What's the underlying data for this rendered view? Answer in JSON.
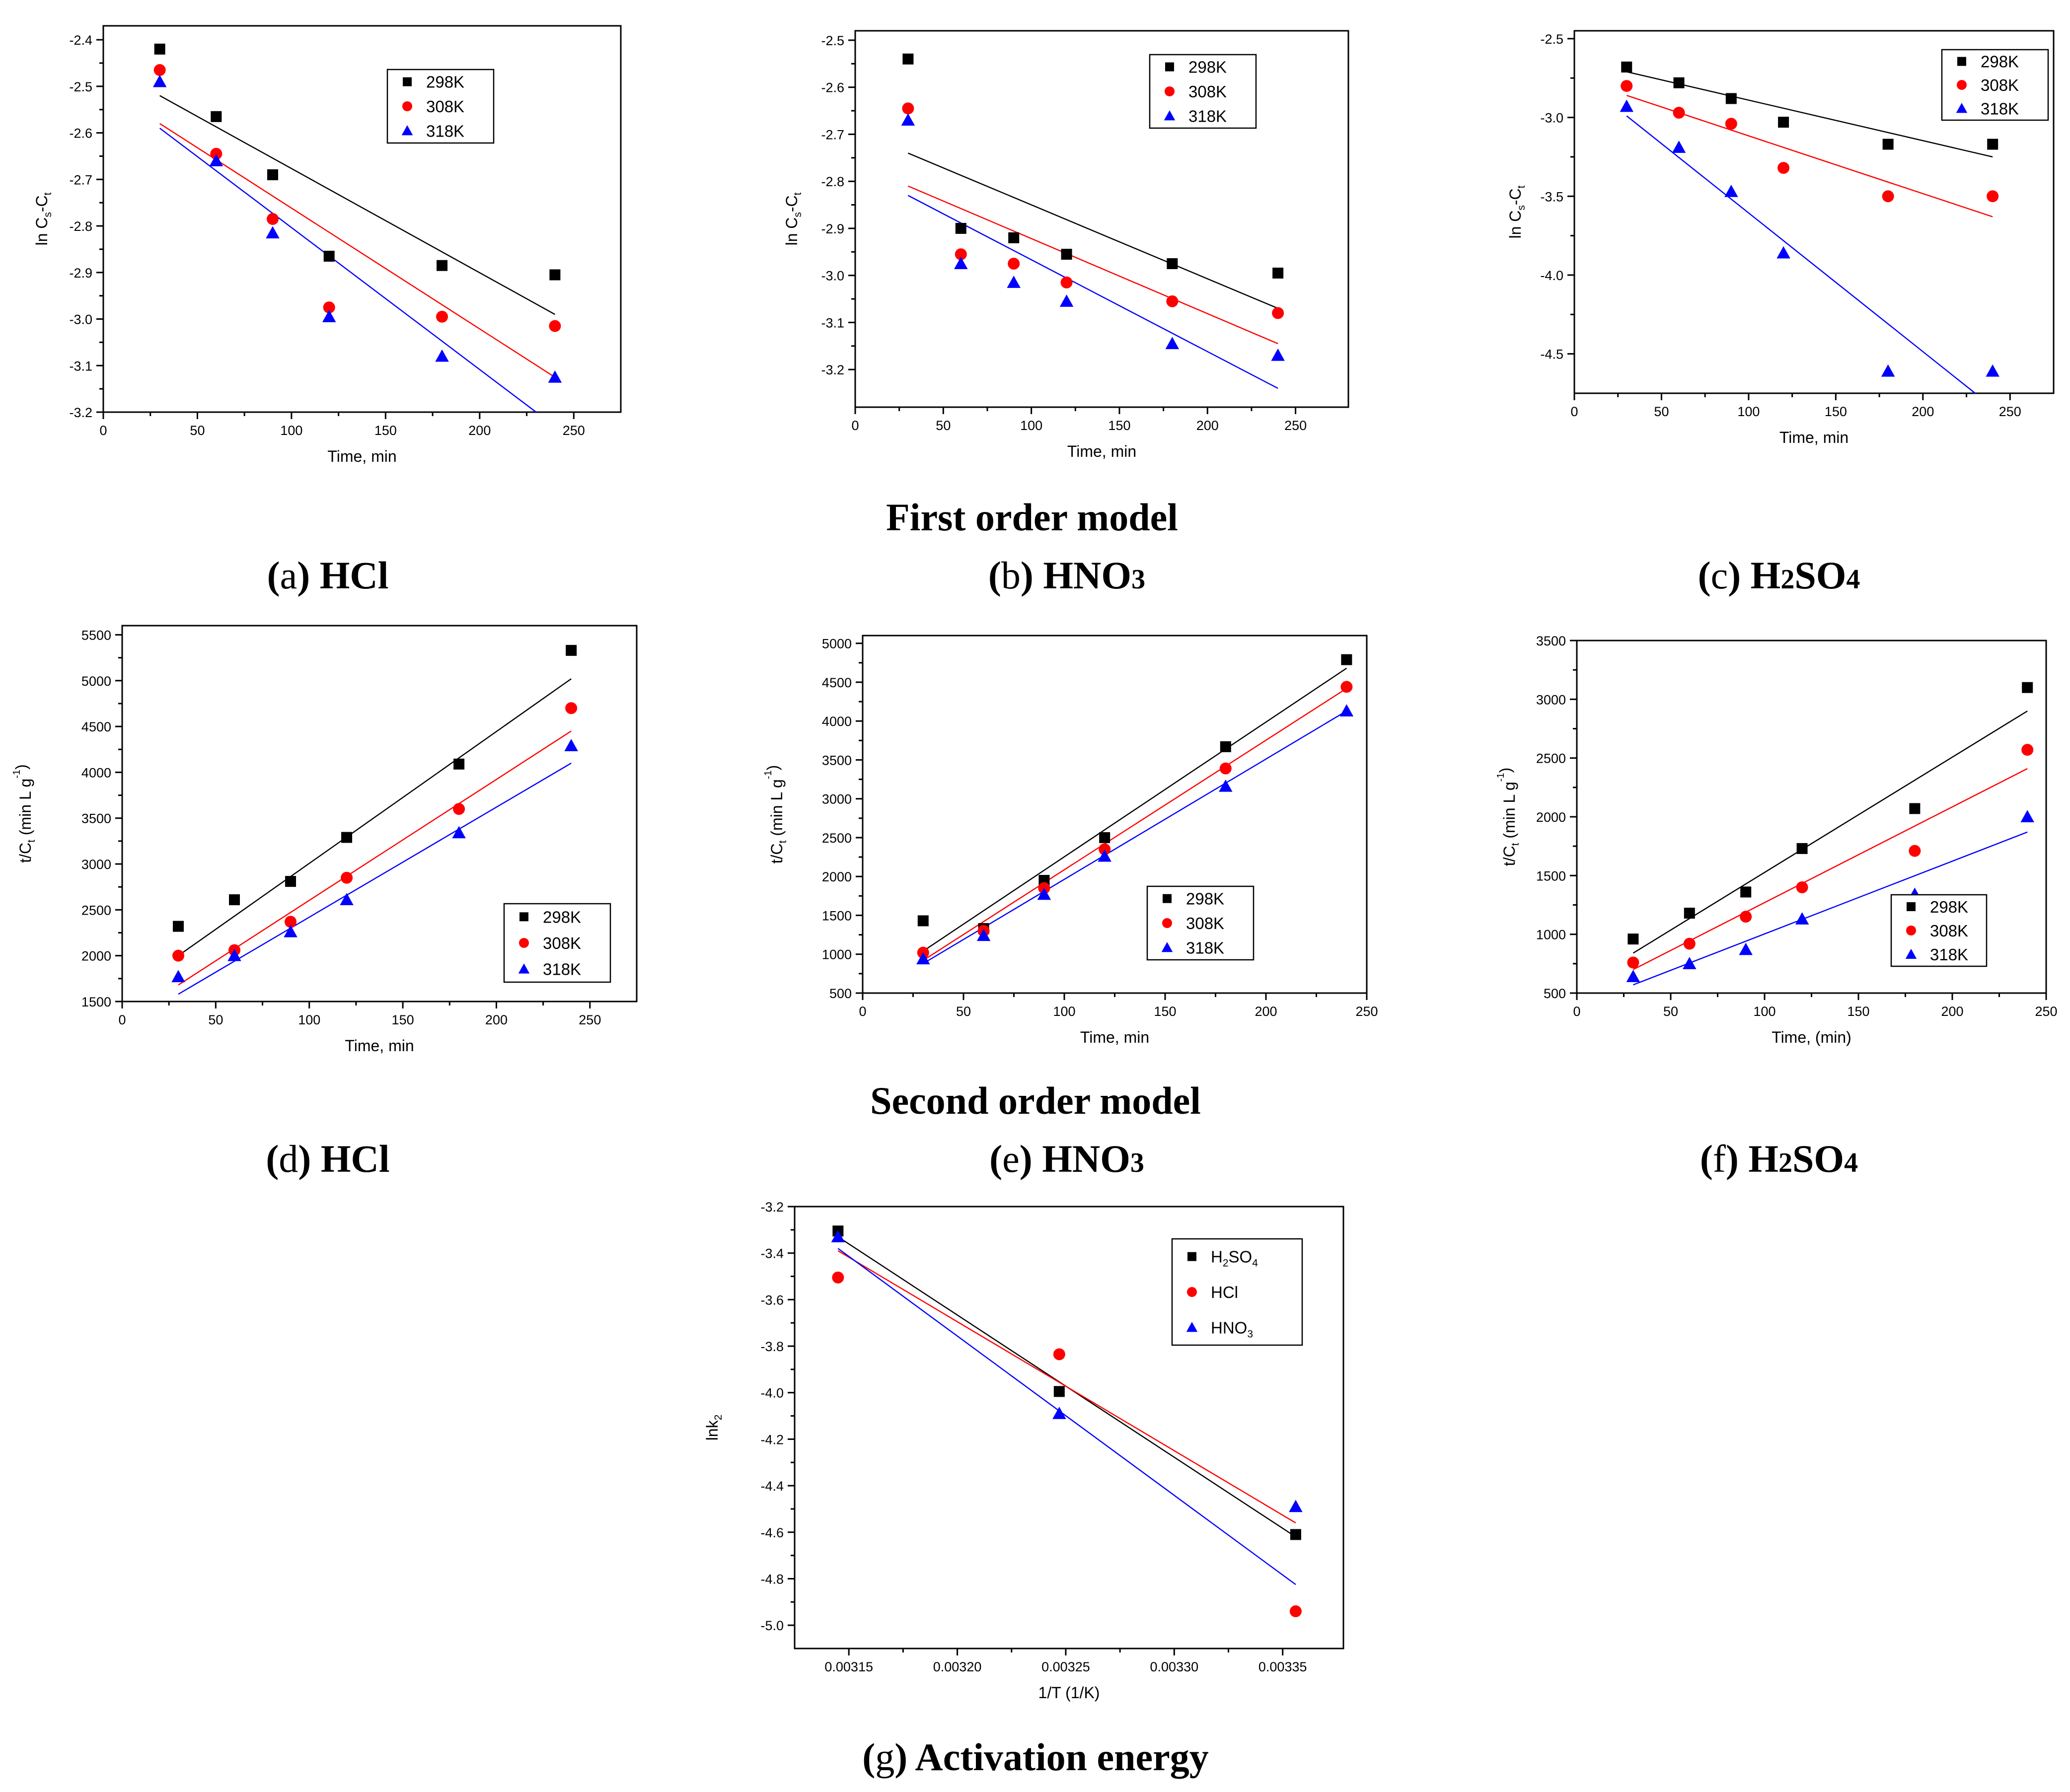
{
  "colors": {
    "black": "#000000",
    "red": "#ff0000",
    "blue": "#0000ff"
  },
  "section_titles": {
    "first": "First order model",
    "second": "Second order model"
  },
  "chart_data": [
    {
      "id": "a",
      "type": "scatter",
      "caption_letter": "a",
      "caption_label": "HCl",
      "title": "",
      "xlabel": "Time, min",
      "ylabel_main": "ln C",
      "ylabel_sub1": "s",
      "ylabel_mid": "-C",
      "ylabel_sub2": "t",
      "xlim": [
        0,
        275
      ],
      "ylim": [
        -3.2,
        -2.37
      ],
      "xticks": [
        0,
        50,
        100,
        150,
        200,
        250
      ],
      "xtick_labels": [
        "0",
        "50",
        "100",
        "150",
        "200",
        "250"
      ],
      "yticks": [
        -3.2,
        -3.1,
        -3.0,
        -2.9,
        -2.8,
        -2.7,
        -2.6,
        -2.5,
        -2.4
      ],
      "ytick_labels": [
        "-3.2",
        "-3.1",
        "-3.0",
        "-2.9",
        "-2.8",
        "-2.7",
        "-2.6",
        "-2.5",
        "-2.4"
      ],
      "legend_position": "top-right",
      "series": [
        {
          "name": "298K",
          "marker": "square",
          "color": "#000000",
          "x": [
            30,
            60,
            90,
            120,
            180,
            240
          ],
          "y": [
            -2.42,
            -2.565,
            -2.69,
            -2.865,
            -2.885,
            -2.905
          ],
          "fit": [
            [
              30,
              -2.52
            ],
            [
              240,
              -2.99
            ]
          ]
        },
        {
          "name": "308K",
          "marker": "circle",
          "color": "#ff0000",
          "x": [
            30,
            60,
            90,
            120,
            180,
            240
          ],
          "y": [
            -2.465,
            -2.645,
            -2.785,
            -2.975,
            -2.995,
            -3.015
          ],
          "fit": [
            [
              30,
              -2.58
            ],
            [
              240,
              -3.125
            ]
          ]
        },
        {
          "name": "318K",
          "marker": "triangle",
          "color": "#0000ff",
          "x": [
            30,
            60,
            90,
            120,
            180,
            240
          ],
          "y": [
            -2.49,
            -2.66,
            -2.815,
            -2.995,
            -3.08,
            -3.125
          ],
          "fit": [
            [
              30,
              -2.59
            ],
            [
              230,
              -3.2
            ]
          ]
        }
      ]
    },
    {
      "id": "b",
      "type": "scatter",
      "caption_letter": "b",
      "caption_label": "HNO",
      "caption_sub": "3",
      "xlabel": "Time, min",
      "ylabel_main": "ln C",
      "ylabel_sub1": "s",
      "ylabel_mid": "-C",
      "ylabel_sub2": "t",
      "xlim": [
        0,
        280
      ],
      "ylim": [
        -3.28,
        -2.48
      ],
      "xticks": [
        0,
        50,
        100,
        150,
        200,
        250
      ],
      "xtick_labels": [
        "0",
        "50",
        "100",
        "150",
        "200",
        "250"
      ],
      "yticks": [
        -3.2,
        -3.1,
        -3.0,
        -2.9,
        -2.8,
        -2.7,
        -2.6,
        -2.5
      ],
      "ytick_labels": [
        "-3.2",
        "-3.1",
        "-3.0",
        "-2.9",
        "-2.8",
        "-2.7",
        "-2.6",
        "-2.5"
      ],
      "legend_position": "top-right",
      "series": [
        {
          "name": "298K",
          "marker": "square",
          "color": "#000000",
          "x": [
            30,
            60,
            90,
            120,
            180,
            240
          ],
          "y": [
            -2.54,
            -2.9,
            -2.92,
            -2.955,
            -2.975,
            -2.995
          ],
          "fit": [
            [
              30,
              -2.74
            ],
            [
              240,
              -3.07
            ]
          ]
        },
        {
          "name": "308K",
          "marker": "circle",
          "color": "#ff0000",
          "x": [
            30,
            60,
            90,
            120,
            180,
            240
          ],
          "y": [
            -2.645,
            -2.955,
            -2.975,
            -3.015,
            -3.055,
            -3.08
          ],
          "fit": [
            [
              30,
              -2.81
            ],
            [
              240,
              -3.145
            ]
          ]
        },
        {
          "name": "318K",
          "marker": "triangle",
          "color": "#0000ff",
          "x": [
            30,
            60,
            90,
            120,
            180,
            240
          ],
          "y": [
            -2.67,
            -2.975,
            -3.015,
            -3.055,
            -3.145,
            -3.17
          ],
          "fit": [
            [
              30,
              -2.83
            ],
            [
              240,
              -3.24
            ]
          ]
        }
      ]
    },
    {
      "id": "c",
      "type": "scatter",
      "caption_letter": "c",
      "caption_label": "H",
      "caption_sub": "2",
      "caption_tail": "SO",
      "caption_sub2": "4",
      "xlabel": "Time, min",
      "ylabel_main": "ln C",
      "ylabel_sub1": "s",
      "ylabel_mid": "-C",
      "ylabel_sub2": "t",
      "xlim": [
        0,
        275
      ],
      "ylim": [
        -4.75,
        -2.45
      ],
      "xticks": [
        0,
        50,
        100,
        150,
        200,
        250
      ],
      "xtick_labels": [
        "0",
        "50",
        "100",
        "150",
        "200",
        "250"
      ],
      "yticks": [
        -4.5,
        -4.0,
        -3.5,
        -3.0,
        -2.5
      ],
      "ytick_labels": [
        "-4.5",
        "-4.0",
        "-3.5",
        "-3.0",
        "-2.5"
      ],
      "legend_position": "top-right",
      "series": [
        {
          "name": "298K",
          "marker": "square",
          "color": "#000000",
          "x": [
            30,
            60,
            90,
            120,
            180,
            240
          ],
          "y": [
            -2.68,
            -2.78,
            -2.88,
            -3.03,
            -3.17,
            -3.17
          ],
          "fit": [
            [
              30,
              -2.71
            ],
            [
              240,
              -3.25
            ]
          ]
        },
        {
          "name": "308K",
          "marker": "circle",
          "color": "#ff0000",
          "x": [
            30,
            60,
            90,
            120,
            180,
            240
          ],
          "y": [
            -2.8,
            -2.97,
            -3.04,
            -3.32,
            -3.5,
            -3.5
          ],
          "fit": [
            [
              30,
              -2.86
            ],
            [
              240,
              -3.63
            ]
          ]
        },
        {
          "name": "318K",
          "marker": "triangle",
          "color": "#0000ff",
          "x": [
            30,
            60,
            90,
            120,
            180,
            240
          ],
          "y": [
            -2.93,
            -3.19,
            -3.47,
            -3.86,
            -4.61,
            -4.61
          ],
          "fit": [
            [
              30,
              -2.99
            ],
            [
              230,
              -4.75
            ]
          ]
        }
      ]
    },
    {
      "id": "d",
      "type": "scatter",
      "caption_letter": "d",
      "caption_label": "HCl",
      "xlabel": "Time, min",
      "ylabel_main": "t/C",
      "ylabel_sub1": "t",
      "ylabel_mid": " (min L g",
      "ylabel_sup": "-1",
      "ylabel_end": ")",
      "xlim": [
        0,
        275
      ],
      "ylim": [
        1500,
        5600
      ],
      "xticks": [
        0,
        50,
        100,
        150,
        200,
        250
      ],
      "xtick_labels": [
        "0",
        "50",
        "100",
        "150",
        "200",
        "250"
      ],
      "yticks": [
        1500,
        2000,
        2500,
        3000,
        3500,
        4000,
        4500,
        5000,
        5500
      ],
      "ytick_labels": [
        "1500",
        "2000",
        "2500",
        "3000",
        "3500",
        "4000",
        "4500",
        "5000",
        "5500"
      ],
      "legend_position": "bottom-right",
      "series": [
        {
          "name": "298K",
          "marker": "square",
          "color": "#000000",
          "x": [
            30,
            60,
            90,
            120,
            180,
            240
          ],
          "y": [
            2320,
            2610,
            2810,
            3290,
            4090,
            5330
          ],
          "fit": [
            [
              30,
              2000
            ],
            [
              240,
              5020
            ]
          ]
        },
        {
          "name": "308K",
          "marker": "circle",
          "color": "#ff0000",
          "x": [
            30,
            60,
            90,
            120,
            180,
            240
          ],
          "y": [
            2000,
            2060,
            2370,
            2850,
            3600,
            4700
          ],
          "fit": [
            [
              30,
              1680
            ],
            [
              240,
              4450
            ]
          ]
        },
        {
          "name": "318K",
          "marker": "triangle",
          "color": "#0000ff",
          "x": [
            30,
            60,
            90,
            120,
            180,
            240
          ],
          "y": [
            1770,
            2000,
            2260,
            2610,
            3340,
            4290
          ],
          "fit": [
            [
              30,
              1580
            ],
            [
              240,
              4100
            ]
          ]
        }
      ]
    },
    {
      "id": "e",
      "type": "scatter",
      "caption_letter": "e",
      "caption_label": "HNO",
      "caption_sub": "3",
      "xlabel": "Time, min",
      "ylabel_main": "t/C",
      "ylabel_sub1": "t",
      "ylabel_mid": " (min L g",
      "ylabel_sup": "-1",
      "ylabel_end": ")",
      "xlim": [
        0,
        250
      ],
      "ylim": [
        500,
        5100
      ],
      "xticks": [
        0,
        50,
        100,
        150,
        200,
        250
      ],
      "xtick_labels": [
        "0",
        "50",
        "100",
        "150",
        "200",
        "250"
      ],
      "yticks": [
        500,
        1000,
        1500,
        2000,
        2500,
        3000,
        3500,
        4000,
        4500,
        5000
      ],
      "ytick_labels": [
        "500",
        "1000",
        "1500",
        "2000",
        "2500",
        "3000",
        "3500",
        "4000",
        "4500",
        "5000"
      ],
      "legend_position": "bottom-right",
      "series": [
        {
          "name": "298K",
          "marker": "square",
          "color": "#000000",
          "x": [
            30,
            60,
            90,
            120,
            180,
            240
          ],
          "y": [
            1430,
            1330,
            1950,
            2500,
            3670,
            4790
          ],
          "fit": [
            [
              30,
              1040
            ],
            [
              240,
              4680
            ]
          ]
        },
        {
          "name": "308K",
          "marker": "circle",
          "color": "#ff0000",
          "x": [
            30,
            60,
            90,
            120,
            180,
            240
          ],
          "y": [
            1020,
            1300,
            1850,
            2350,
            3390,
            4440
          ],
          "fit": [
            [
              30,
              920
            ],
            [
              240,
              4420
            ]
          ]
        },
        {
          "name": "318K",
          "marker": "triangle",
          "color": "#0000ff",
          "x": [
            30,
            60,
            90,
            120,
            180,
            240
          ],
          "y": [
            940,
            1240,
            1770,
            2260,
            3160,
            4130
          ],
          "fit": [
            [
              30,
              880
            ],
            [
              240,
              4130
            ]
          ]
        }
      ]
    },
    {
      "id": "f",
      "type": "scatter",
      "caption_letter": "f",
      "caption_label": "H",
      "caption_sub": "2",
      "caption_tail": "SO",
      "caption_sub2": "4",
      "xlabel": "Time, (min)",
      "ylabel_main": "t/C",
      "ylabel_sub1": "t",
      "ylabel_mid": " (min L g",
      "ylabel_sup": "-1",
      "ylabel_end": ")",
      "xlim": [
        0,
        250
      ],
      "ylim": [
        500,
        3500
      ],
      "xticks": [
        0,
        50,
        100,
        150,
        200,
        250
      ],
      "xtick_labels": [
        "0",
        "50",
        "100",
        "150",
        "200",
        "250"
      ],
      "yticks": [
        500,
        1000,
        1500,
        2000,
        2500,
        3000,
        3500
      ],
      "ytick_labels": [
        "500",
        "1000",
        "1500",
        "2000",
        "2500",
        "3000",
        "3500"
      ],
      "legend_position": "bottom-right",
      "series": [
        {
          "name": "298K",
          "marker": "square",
          "color": "#000000",
          "x": [
            30,
            60,
            90,
            120,
            180,
            240
          ],
          "y": [
            960,
            1180,
            1360,
            1730,
            2070,
            3100
          ],
          "fit": [
            [
              30,
              840
            ],
            [
              240,
              2900
            ]
          ]
        },
        {
          "name": "308K",
          "marker": "circle",
          "color": "#ff0000",
          "x": [
            30,
            60,
            90,
            120,
            180,
            240
          ],
          "y": [
            760,
            920,
            1150,
            1400,
            1710,
            2570
          ],
          "fit": [
            [
              30,
              700
            ],
            [
              240,
              2410
            ]
          ]
        },
        {
          "name": "318K",
          "marker": "triangle",
          "color": "#0000ff",
          "x": [
            30,
            60,
            90,
            120,
            180,
            240
          ],
          "y": [
            640,
            750,
            870,
            1130,
            1340,
            2000
          ],
          "fit": [
            [
              30,
              570
            ],
            [
              240,
              1870
            ]
          ]
        }
      ]
    },
    {
      "id": "g",
      "type": "scatter",
      "caption_letter": "g",
      "caption_label": "Activation energy",
      "xlabel": "1/T (1/K)",
      "ylabel_main": "lnk",
      "ylabel_sub1": "2",
      "xlim": [
        0.003125,
        0.003378
      ],
      "ylim": [
        -5.1,
        -3.2
      ],
      "xticks": [
        0.00315,
        0.0032,
        0.00325,
        0.0033,
        0.00335
      ],
      "xtick_labels": [
        "0.00315",
        "0.00320",
        "0.00325",
        "0.00330",
        "0.00335"
      ],
      "yticks": [
        -5.0,
        -4.8,
        -4.6,
        -4.4,
        -4.2,
        -4.0,
        -3.8,
        -3.6,
        -3.4,
        -3.2
      ],
      "ytick_labels": [
        "-5.0",
        "-4.8",
        "-4.6",
        "-4.4",
        "-4.2",
        "-4.0",
        "-3.8",
        "-3.6",
        "-3.4",
        "-3.2"
      ],
      "legend_position": "top-right",
      "series": [
        {
          "name": "H2SO4",
          "label_main": "H",
          "label_sub": "2",
          "label_mid": "SO",
          "label_sub2": "4",
          "marker": "square",
          "color": "#000000",
          "x": [
            0.003145,
            0.003247,
            0.003356
          ],
          "y": [
            -3.305,
            -3.995,
            -4.61
          ],
          "fit": [
            [
              0.003145,
              -3.33
            ],
            [
              0.003356,
              -4.62
            ]
          ]
        },
        {
          "name": "HCl",
          "label_main": "HCl",
          "marker": "circle",
          "color": "#ff0000",
          "x": [
            0.003145,
            0.003247,
            0.003356
          ],
          "y": [
            -3.505,
            -3.835,
            -4.94
          ],
          "fit": [
            [
              0.003145,
              -3.39
            ],
            [
              0.003356,
              -4.56
            ]
          ]
        },
        {
          "name": "HNO3",
          "label_main": "HNO",
          "label_sub": "3",
          "marker": "triangle",
          "color": "#0000ff",
          "x": [
            0.003145,
            0.003247,
            0.003356
          ],
          "y": [
            -3.33,
            -4.09,
            -4.49
          ],
          "fit": [
            [
              0.003145,
              -3.38
            ],
            [
              0.003356,
              -4.825
            ]
          ]
        }
      ]
    }
  ]
}
